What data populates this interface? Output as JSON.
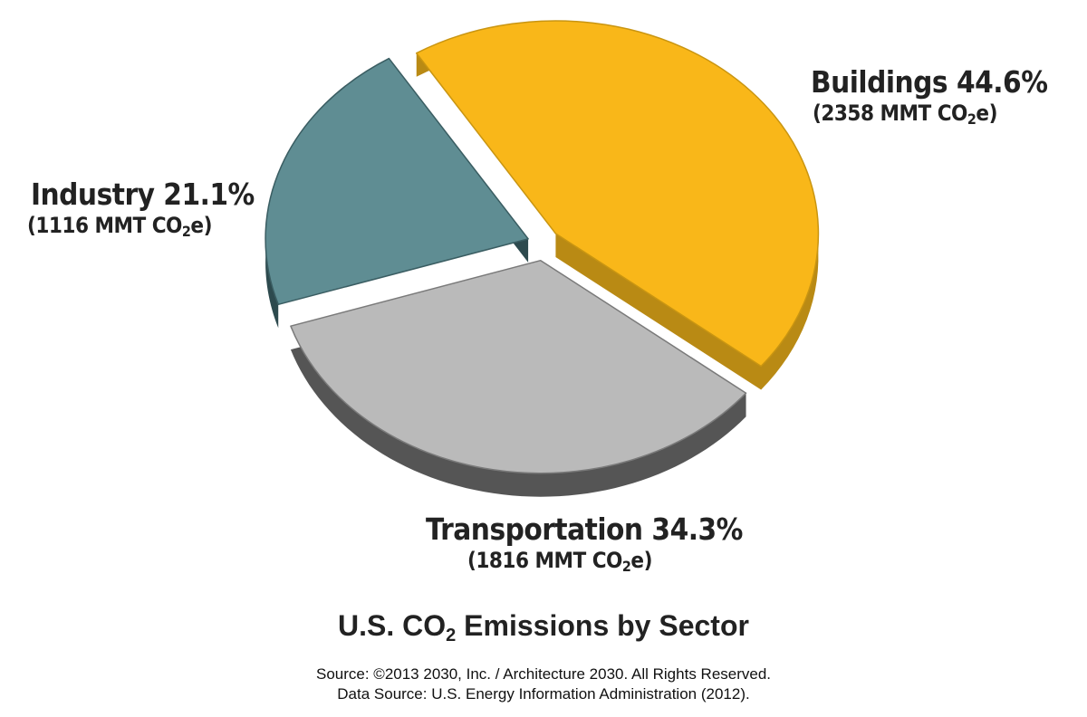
{
  "chart_data": {
    "type": "pie",
    "title": "U.S. CO",
    "title_sub": "2",
    "title_rest": " Emissions by Sector",
    "slices": [
      {
        "label": "Buildings",
        "percent": 44.6,
        "percent_label": "44.6%",
        "value_label": "(2358 MMT CO",
        "sub": "2",
        "value_suffix": "e)",
        "value": 2358,
        "color": "#f9b719",
        "side": "#b98a14",
        "edge": "#c99511"
      },
      {
        "label": "Transportation",
        "percent": 34.3,
        "percent_label": "34.3%",
        "value_label": "(1816 MMT CO",
        "sub": "2",
        "value_suffix": "e)",
        "value": 1816,
        "color": "#bababa",
        "side": "#555555",
        "edge": "#7a7a7a"
      },
      {
        "label": "Industry",
        "percent": 21.1,
        "percent_label": "21.1%",
        "value_label": "(1116 MMT CO",
        "sub": "2",
        "value_suffix": "e)",
        "value": 1116,
        "color": "#5f8d93",
        "side": "#2d4a4e",
        "edge": "#3a5d62"
      }
    ],
    "unit": "MMT CO2e",
    "exploded": true,
    "three_d": true
  },
  "source": {
    "line1": "Source: ©2013 2030, Inc. / Architecture 2030. All Rights Reserved.",
    "line2": "Data Source: U.S. Energy Information Administration (2012)."
  }
}
